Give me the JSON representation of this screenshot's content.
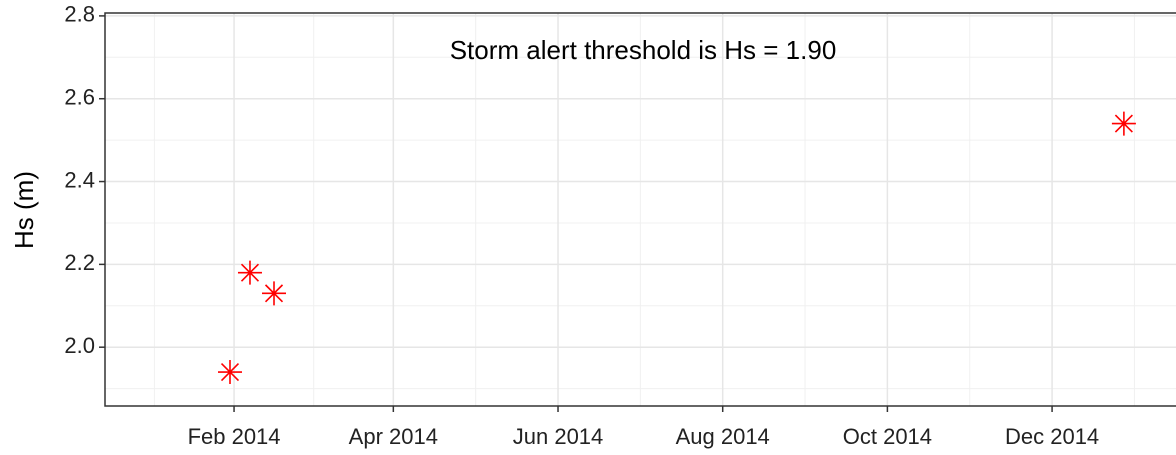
{
  "chart_data": {
    "type": "scatter",
    "annotation": "Storm alert threshold is Hs = 1.90",
    "y_label": "Hs (m)",
    "x": [
      29.5,
      36.9,
      45.8,
      360.6
    ],
    "values": [
      1.94,
      2.18,
      2.13,
      2.54
    ],
    "color": "#ff0000",
    "marker": "asterisk",
    "xlim": [
      -16.8,
      379.9
    ],
    "ylim": [
      1.858,
      2.807
    ],
    "xticks": [
      {
        "value": 31,
        "label": "Feb 2014"
      },
      {
        "value": 90,
        "label": "Apr 2014"
      },
      {
        "value": 151,
        "label": "Jun 2014"
      },
      {
        "value": 212,
        "label": "Aug 2014"
      },
      {
        "value": 273,
        "label": "Oct 2014"
      },
      {
        "value": 334,
        "label": "Dec 2014"
      }
    ],
    "yticks": [
      {
        "value": 2.0,
        "label": "2.0"
      },
      {
        "value": 2.2,
        "label": "2.2"
      },
      {
        "value": 2.4,
        "label": "2.4"
      },
      {
        "value": 2.6,
        "label": "2.6"
      },
      {
        "value": 2.8,
        "label": "2.8"
      }
    ],
    "grid": true,
    "minor_grid": true
  }
}
